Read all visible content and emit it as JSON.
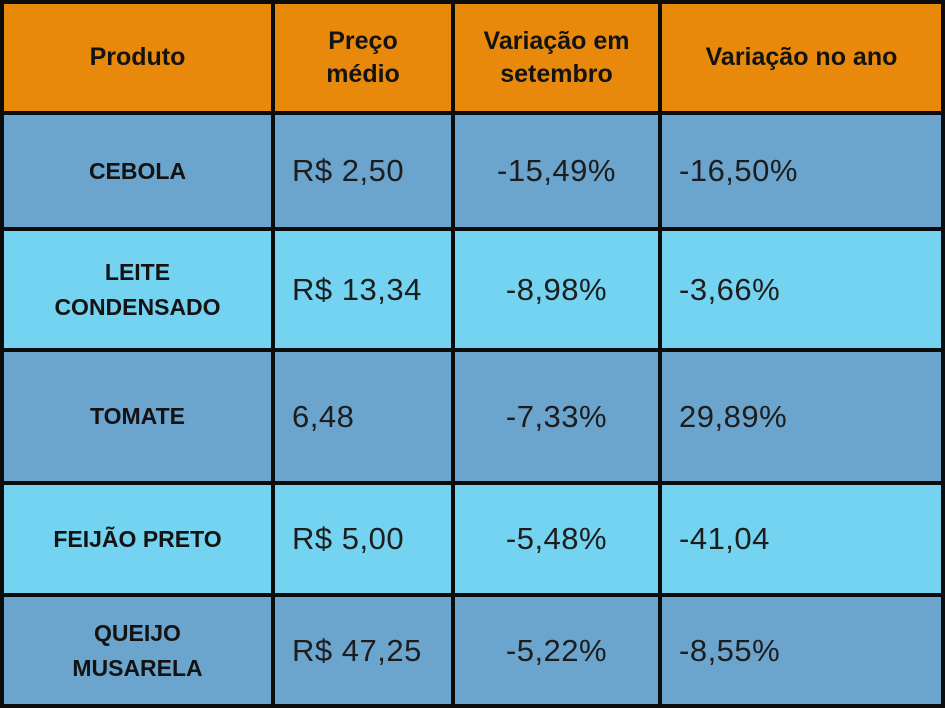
{
  "colors": {
    "header_bg": "#e8890b",
    "row_dark_bg": "#6ba5ce",
    "row_light_bg": "#73d3f0",
    "border": "#0c0c0c",
    "text": "#131313"
  },
  "chart_data": {
    "type": "table",
    "title": "",
    "columns": [
      "Produto",
      "Preço médio",
      "Variação em setembro",
      "Variação no ano"
    ],
    "rows": [
      [
        "CEBOLA",
        "R$ 2,50",
        "-15,49%",
        "-16,50%"
      ],
      [
        "LEITE CONDENSADO",
        "R$ 13,34",
        "-8,98%",
        "-3,66%"
      ],
      [
        "TOMATE",
        "6,48",
        "-7,33%",
        "29,89%"
      ],
      [
        "FEIJÃO PRETO",
        "R$ 5,00",
        "-5,48%",
        "-41,04"
      ],
      [
        "QUEIJO MUSARELA",
        "R$ 47,25",
        "-5,22%",
        "-8,55%"
      ]
    ]
  }
}
